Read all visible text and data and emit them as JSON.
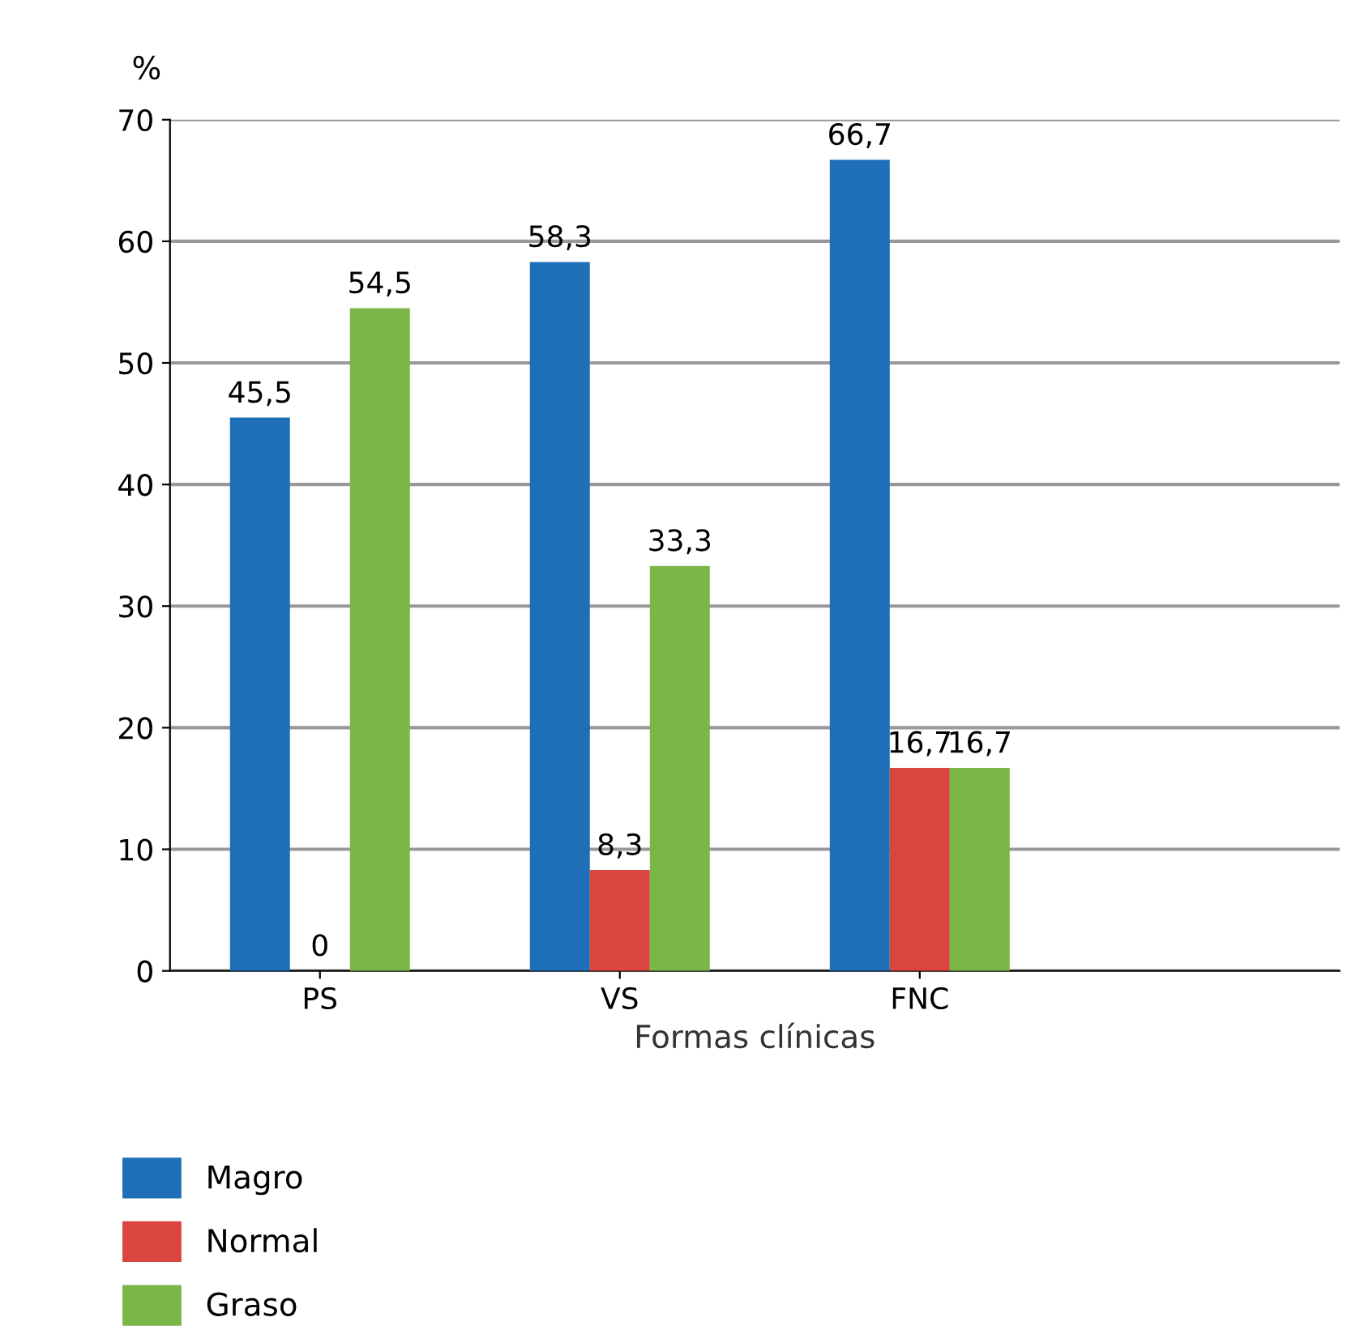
{
  "chart_data": {
    "type": "bar",
    "ylabel": "%",
    "xlabel": "Formas clínicas",
    "categories": [
      "PS",
      "VS",
      "FNC"
    ],
    "series": [
      {
        "name": "Magro",
        "color": "#1f6fb8",
        "values": [
          45.5,
          58.3,
          66.7
        ],
        "value_labels": [
          "45,5",
          "58,3",
          "66,7"
        ]
      },
      {
        "name": "Normal",
        "color": "#d9453f",
        "values": [
          0,
          8.3,
          16.7
        ],
        "value_labels": [
          "0",
          "8,3",
          "16,7"
        ]
      },
      {
        "name": "Graso",
        "color": "#7ab648",
        "values": [
          54.5,
          33.3,
          16.7
        ],
        "value_labels": [
          "54,5",
          "33,3",
          "16,7"
        ]
      }
    ],
    "ylim": [
      0,
      70
    ],
    "yticks": [
      0,
      10,
      20,
      30,
      40,
      50,
      60,
      70
    ],
    "grid": "y",
    "legend": "bottom"
  }
}
